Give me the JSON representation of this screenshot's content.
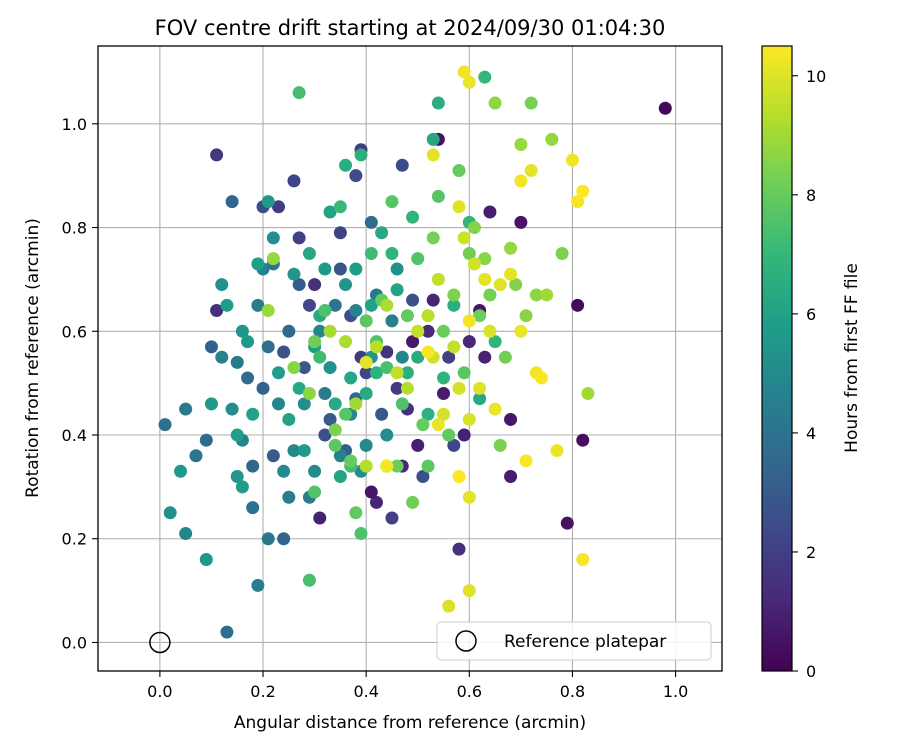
{
  "chart_data": {
    "type": "scatter",
    "title": "FOV centre drift starting at 2024/09/30 01:04:30",
    "xlabel": "Angular distance from reference (arcmin)",
    "ylabel": "Rotation from reference (arcmin)",
    "xlim": [
      -0.12,
      1.09
    ],
    "ylim": [
      -0.055,
      1.15
    ],
    "xticks": [
      "0.0",
      "0.2",
      "0.4",
      "0.6",
      "0.8",
      "1.0"
    ],
    "yticks": [
      "0.0",
      "0.2",
      "0.4",
      "0.6",
      "0.8",
      "1.0"
    ],
    "grid": true,
    "colormap": "viridis",
    "colorbar": {
      "label": "Hours from first FF file",
      "range": [
        0,
        10.5
      ],
      "ticks": [
        "0",
        "2",
        "4",
        "6",
        "8",
        "10"
      ]
    },
    "legend": {
      "placement": "lower-right",
      "entries": [
        "Reference platepar"
      ]
    },
    "reference_point": {
      "x": 0.0,
      "y": 0.0
    },
    "points": [
      [
        0.98,
        1.03,
        0.2
      ],
      [
        0.81,
        0.65,
        0.3
      ],
      [
        0.82,
        0.39,
        0.4
      ],
      [
        0.79,
        0.23,
        0.5
      ],
      [
        0.7,
        0.81,
        0.6
      ],
      [
        0.68,
        0.43,
        0.7
      ],
      [
        0.68,
        0.32,
        0.8
      ],
      [
        0.54,
        0.97,
        0.5
      ],
      [
        0.63,
        0.55,
        1.0
      ],
      [
        0.6,
        0.58,
        1.2
      ],
      [
        0.64,
        0.83,
        0.9
      ],
      [
        0.62,
        0.64,
        0.6
      ],
      [
        0.59,
        0.4,
        1.0
      ],
      [
        0.58,
        0.18,
        1.4
      ],
      [
        0.55,
        0.48,
        0.8
      ],
      [
        0.53,
        0.66,
        1.1
      ],
      [
        0.52,
        0.6,
        1.3
      ],
      [
        0.5,
        0.38,
        0.9
      ],
      [
        0.49,
        0.58,
        0.7
      ],
      [
        0.48,
        0.45,
        1.5
      ],
      [
        0.47,
        0.34,
        1.2
      ],
      [
        0.46,
        0.49,
        1.8
      ],
      [
        0.45,
        0.24,
        2.0
      ],
      [
        0.42,
        0.27,
        1.1
      ],
      [
        0.41,
        0.29,
        0.6
      ],
      [
        0.44,
        0.56,
        1.6
      ],
      [
        0.4,
        0.52,
        2.2
      ],
      [
        0.39,
        0.95,
        1.9
      ],
      [
        0.38,
        0.9,
        2.4
      ],
      [
        0.37,
        0.63,
        2.6
      ],
      [
        0.31,
        0.24,
        1.0
      ],
      [
        0.26,
        0.89,
        2.2
      ],
      [
        0.23,
        0.84,
        1.9
      ],
      [
        0.2,
        0.84,
        2.5
      ],
      [
        0.11,
        0.64,
        1.5
      ],
      [
        0.11,
        0.94,
        1.7
      ],
      [
        0.3,
        0.69,
        1.4
      ],
      [
        0.35,
        0.72,
        2.8
      ],
      [
        0.33,
        0.43,
        3.0
      ],
      [
        0.28,
        0.53,
        2.9
      ],
      [
        0.27,
        0.78,
        2.0
      ],
      [
        0.27,
        0.69,
        3.1
      ],
      [
        0.24,
        0.56,
        2.7
      ],
      [
        0.2,
        0.49,
        3.3
      ],
      [
        0.18,
        0.34,
        3.5
      ],
      [
        0.22,
        0.36,
        3.0
      ],
      [
        0.25,
        0.6,
        3.6
      ],
      [
        0.29,
        0.65,
        2.3
      ],
      [
        0.32,
        0.4,
        2.6
      ],
      [
        0.35,
        0.79,
        2.1
      ],
      [
        0.36,
        0.37,
        3.2
      ],
      [
        0.38,
        0.47,
        3.4
      ],
      [
        0.39,
        0.55,
        1.8
      ],
      [
        0.41,
        0.81,
        3.7
      ],
      [
        0.43,
        0.44,
        2.9
      ],
      [
        0.47,
        0.92,
        2.4
      ],
      [
        0.49,
        0.66,
        2.7
      ],
      [
        0.51,
        0.32,
        2.6
      ],
      [
        0.56,
        0.55,
        2.0
      ],
      [
        0.57,
        0.38,
        2.3
      ],
      [
        0.24,
        0.2,
        3.4
      ],
      [
        0.21,
        0.2,
        4.2
      ],
      [
        0.19,
        0.11,
        4.5
      ],
      [
        0.18,
        0.26,
        4.0
      ],
      [
        0.13,
        0.02,
        3.8
      ],
      [
        0.01,
        0.42,
        3.9
      ],
      [
        0.05,
        0.45,
        4.3
      ],
      [
        0.07,
        0.36,
        4.1
      ],
      [
        0.09,
        0.39,
        3.6
      ],
      [
        0.1,
        0.57,
        3.2
      ],
      [
        0.12,
        0.55,
        4.6
      ],
      [
        0.14,
        0.85,
        3.4
      ],
      [
        0.15,
        0.54,
        4.2
      ],
      [
        0.16,
        0.39,
        4.7
      ],
      [
        0.17,
        0.51,
        3.7
      ],
      [
        0.19,
        0.65,
        4.4
      ],
      [
        0.2,
        0.72,
        4.6
      ],
      [
        0.21,
        0.57,
        3.8
      ],
      [
        0.22,
        0.73,
        4.0
      ],
      [
        0.23,
        0.46,
        4.8
      ],
      [
        0.24,
        0.33,
        5.0
      ],
      [
        0.25,
        0.28,
        4.5
      ],
      [
        0.26,
        0.37,
        4.9
      ],
      [
        0.28,
        0.46,
        5.2
      ],
      [
        0.29,
        0.28,
        4.4
      ],
      [
        0.3,
        0.33,
        5.1
      ],
      [
        0.31,
        0.6,
        4.8
      ],
      [
        0.32,
        0.48,
        4.3
      ],
      [
        0.33,
        0.53,
        5.3
      ],
      [
        0.34,
        0.65,
        4.1
      ],
      [
        0.35,
        0.36,
        4.7
      ],
      [
        0.36,
        0.69,
        5.5
      ],
      [
        0.37,
        0.44,
        5.0
      ],
      [
        0.38,
        0.64,
        4.6
      ],
      [
        0.39,
        0.33,
        5.2
      ],
      [
        0.4,
        0.38,
        4.9
      ],
      [
        0.41,
        0.55,
        5.4
      ],
      [
        0.42,
        0.67,
        4.2
      ],
      [
        0.44,
        0.4,
        5.1
      ],
      [
        0.45,
        0.62,
        4.5
      ],
      [
        0.46,
        0.72,
        5.3
      ],
      [
        0.47,
        0.55,
        4.8
      ],
      [
        0.15,
        0.32,
        5.5
      ],
      [
        0.16,
        0.3,
        5.8
      ],
      [
        0.04,
        0.33,
        5.6
      ],
      [
        0.02,
        0.25,
        5.2
      ],
      [
        0.05,
        0.21,
        4.8
      ],
      [
        0.09,
        0.16,
        5.5
      ],
      [
        0.1,
        0.46,
        5.6
      ],
      [
        0.12,
        0.69,
        5.3
      ],
      [
        0.13,
        0.65,
        5.8
      ],
      [
        0.14,
        0.45,
        5.1
      ],
      [
        0.15,
        0.4,
        5.9
      ],
      [
        0.16,
        0.6,
        5.4
      ],
      [
        0.17,
        0.58,
        5.7
      ],
      [
        0.18,
        0.44,
        6.0
      ],
      [
        0.19,
        0.73,
        5.9
      ],
      [
        0.21,
        0.85,
        5.6
      ],
      [
        0.22,
        0.78,
        5.2
      ],
      [
        0.23,
        0.52,
        5.8
      ],
      [
        0.25,
        0.43,
        6.1
      ],
      [
        0.26,
        0.71,
        5.5
      ],
      [
        0.27,
        0.49,
        6.3
      ],
      [
        0.28,
        0.37,
        5.7
      ],
      [
        0.29,
        0.75,
        6.2
      ],
      [
        0.3,
        0.57,
        5.9
      ],
      [
        0.31,
        0.63,
        6.4
      ],
      [
        0.32,
        0.72,
        5.6
      ],
      [
        0.33,
        0.83,
        6.0
      ],
      [
        0.34,
        0.46,
        6.3
      ],
      [
        0.35,
        0.32,
        6.1
      ],
      [
        0.36,
        0.92,
        6.5
      ],
      [
        0.37,
        0.51,
        6.2
      ],
      [
        0.38,
        0.72,
        5.8
      ],
      [
        0.39,
        0.94,
        6.6
      ],
      [
        0.4,
        0.48,
        6.4
      ],
      [
        0.41,
        0.65,
        6.0
      ],
      [
        0.42,
        0.52,
        6.7
      ],
      [
        0.43,
        0.79,
        6.3
      ],
      [
        0.44,
        0.34,
        6.5
      ],
      [
        0.45,
        0.75,
        6.8
      ],
      [
        0.46,
        0.68,
        6.1
      ],
      [
        0.48,
        0.52,
        6.6
      ],
      [
        0.49,
        0.82,
        6.9
      ],
      [
        0.5,
        0.55,
        6.4
      ],
      [
        0.52,
        0.44,
        6.7
      ],
      [
        0.53,
        0.97,
        6.2
      ],
      [
        0.54,
        1.04,
        6.5
      ],
      [
        0.55,
        0.51,
        6.8
      ],
      [
        0.57,
        0.65,
        6.6
      ],
      [
        0.6,
        0.81,
        6.9
      ],
      [
        0.62,
        0.47,
        6.3
      ],
      [
        0.63,
        1.09,
        7.0
      ],
      [
        0.65,
        0.58,
        6.9
      ],
      [
        0.27,
        1.06,
        7.3
      ],
      [
        0.29,
        0.12,
        7.4
      ],
      [
        0.3,
        0.29,
        7.6
      ],
      [
        0.31,
        0.55,
        7.2
      ],
      [
        0.32,
        0.64,
        7.5
      ],
      [
        0.34,
        0.38,
        7.8
      ],
      [
        0.35,
        0.84,
        7.1
      ],
      [
        0.36,
        0.44,
        7.7
      ],
      [
        0.37,
        0.34,
        7.3
      ],
      [
        0.38,
        0.25,
        7.9
      ],
      [
        0.39,
        0.21,
        7.5
      ],
      [
        0.4,
        0.62,
        7.8
      ],
      [
        0.41,
        0.75,
        7.2
      ],
      [
        0.42,
        0.58,
        7.6
      ],
      [
        0.43,
        0.66,
        8.0
      ],
      [
        0.44,
        0.53,
        7.4
      ],
      [
        0.45,
        0.85,
        7.7
      ],
      [
        0.46,
        0.34,
        8.1
      ],
      [
        0.47,
        0.46,
        7.5
      ],
      [
        0.48,
        0.63,
        7.9
      ],
      [
        0.49,
        0.27,
        8.2
      ],
      [
        0.5,
        0.74,
        7.6
      ],
      [
        0.51,
        0.42,
        8.0
      ],
      [
        0.52,
        0.34,
        7.8
      ],
      [
        0.53,
        0.78,
        8.3
      ],
      [
        0.54,
        0.86,
        7.7
      ],
      [
        0.55,
        0.6,
        8.1
      ],
      [
        0.56,
        0.4,
        7.9
      ],
      [
        0.57,
        0.67,
        8.4
      ],
      [
        0.58,
        0.91,
        8.0
      ],
      [
        0.59,
        0.52,
        7.8
      ],
      [
        0.6,
        0.75,
        8.2
      ],
      [
        0.61,
        0.8,
        8.5
      ],
      [
        0.62,
        0.63,
        8.1
      ],
      [
        0.63,
        0.74,
        8.6
      ],
      [
        0.64,
        0.67,
        8.3
      ],
      [
        0.65,
        1.04,
        8.7
      ],
      [
        0.66,
        0.38,
        8.4
      ],
      [
        0.67,
        0.55,
        8.2
      ],
      [
        0.68,
        0.76,
        8.8
      ],
      [
        0.69,
        0.69,
        8.5
      ],
      [
        0.7,
        0.96,
        8.9
      ],
      [
        0.71,
        0.63,
        8.6
      ],
      [
        0.72,
        1.04,
        8.3
      ],
      [
        0.73,
        0.67,
        8.7
      ],
      [
        0.75,
        0.67,
        9.0
      ],
      [
        0.76,
        0.97,
        8.8
      ],
      [
        0.78,
        0.75,
        8.4
      ],
      [
        0.83,
        0.48,
        9.0
      ],
      [
        0.37,
        0.35,
        8.0
      ],
      [
        0.34,
        0.41,
        8.4
      ],
      [
        0.3,
        0.58,
        8.2
      ],
      [
        0.26,
        0.53,
        8.6
      ],
      [
        0.22,
        0.74,
        8.8
      ],
      [
        0.21,
        0.64,
        8.9
      ],
      [
        0.29,
        0.48,
        8.7
      ],
      [
        0.33,
        0.6,
        9.1
      ],
      [
        0.36,
        0.58,
        9.2
      ],
      [
        0.38,
        0.46,
        9.0
      ],
      [
        0.4,
        0.34,
        9.3
      ],
      [
        0.42,
        0.57,
        9.4
      ],
      [
        0.44,
        0.65,
        9.2
      ],
      [
        0.46,
        0.52,
        9.5
      ],
      [
        0.48,
        0.49,
        9.3
      ],
      [
        0.5,
        0.6,
        9.6
      ],
      [
        0.52,
        0.63,
        9.4
      ],
      [
        0.53,
        0.55,
        9.7
      ],
      [
        0.54,
        0.7,
        9.5
      ],
      [
        0.55,
        0.44,
        9.8
      ],
      [
        0.56,
        0.07,
        9.9
      ],
      [
        0.57,
        0.57,
        9.6
      ],
      [
        0.58,
        0.49,
        9.8
      ],
      [
        0.59,
        0.78,
        9.7
      ],
      [
        0.6,
        0.1,
        10.0
      ],
      [
        0.6,
        0.43,
        9.9
      ],
      [
        0.6,
        0.28,
        10.1
      ],
      [
        0.61,
        0.73,
        9.8
      ],
      [
        0.62,
        0.49,
        10.0
      ],
      [
        0.63,
        0.7,
        10.1
      ],
      [
        0.64,
        0.6,
        9.9
      ],
      [
        0.65,
        0.45,
        10.2
      ],
      [
        0.66,
        0.69,
        10.0
      ],
      [
        0.68,
        0.71,
        10.1
      ],
      [
        0.7,
        0.89,
        10.3
      ],
      [
        0.7,
        0.6,
        10.2
      ],
      [
        0.71,
        0.35,
        10.4
      ],
      [
        0.72,
        0.91,
        10.1
      ],
      [
        0.73,
        0.52,
        10.3
      ],
      [
        0.74,
        0.51,
        10.4
      ],
      [
        0.77,
        0.37,
        10.2
      ],
      [
        0.8,
        0.93,
        10.3
      ],
      [
        0.81,
        0.85,
        10.4
      ],
      [
        0.82,
        0.87,
        10.5
      ],
      [
        0.82,
        0.16,
        10.4
      ],
      [
        0.59,
        1.1,
        10.3
      ],
      [
        0.6,
        1.08,
        10.2
      ],
      [
        0.53,
        0.94,
        10.1
      ],
      [
        0.58,
        0.84,
        10.0
      ],
      [
        0.6,
        0.62,
        10.3
      ],
      [
        0.54,
        0.42,
        10.2
      ],
      [
        0.52,
        0.56,
        10.4
      ],
      [
        0.58,
        0.32,
        10.5
      ],
      [
        0.44,
        0.34,
        10.4
      ],
      [
        0.4,
        0.54,
        10.1
      ]
    ]
  }
}
